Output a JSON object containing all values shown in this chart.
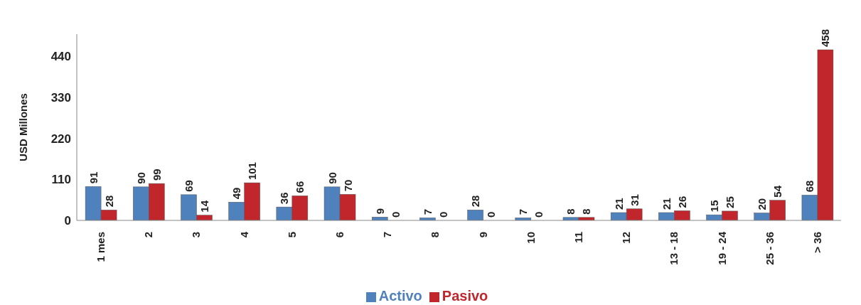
{
  "chart_data": {
    "type": "bar",
    "ylabel": "USD Millones",
    "categories": [
      "1 mes",
      "2",
      "3",
      "4",
      "5",
      "6",
      "7",
      "8",
      "9",
      "10",
      "11",
      "12",
      "13 - 18",
      "19 - 24",
      "25 - 36",
      "> 36"
    ],
    "series": [
      {
        "name": "Activo",
        "color": "#4f81bd",
        "values": [
          91,
          90,
          69,
          49,
          36,
          90,
          9,
          7,
          28,
          7,
          8,
          21,
          21,
          15,
          20,
          68
        ]
      },
      {
        "name": "Pasivo",
        "color": "#c0262b",
        "values": [
          28,
          99,
          14,
          101,
          66,
          70,
          0,
          0,
          0,
          0,
          8,
          31,
          26,
          25,
          54,
          458
        ]
      }
    ],
    "ylim": [
      0,
      500
    ],
    "yticks": [
      0,
      110,
      220,
      330,
      440
    ],
    "grid": false,
    "legend": "bottom",
    "data_labels": true
  }
}
